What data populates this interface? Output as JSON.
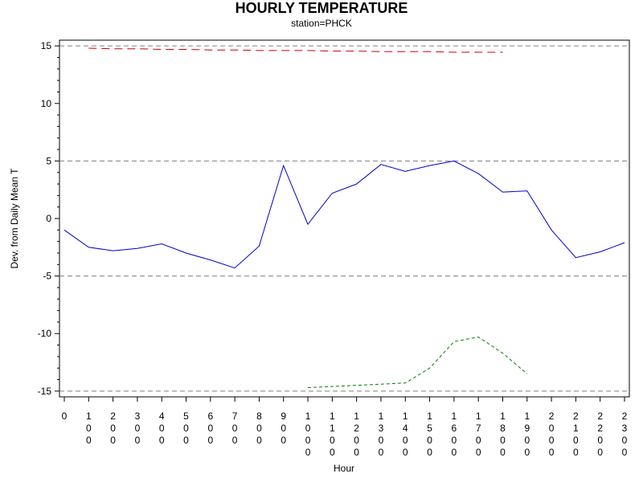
{
  "chart_data": {
    "type": "line",
    "title": "HOURLY TEMPERATURE",
    "subtitle": "station=PHCK",
    "xlabel": "Hour",
    "ylabel": "Dev. from Daily Mean T",
    "xlim": [
      0,
      23
    ],
    "ylim": [
      -15.5,
      15.5
    ],
    "y_ticks": [
      15,
      10,
      5,
      0,
      -5,
      -10,
      -15
    ],
    "y_tick_labels": [
      "15",
      "10",
      "5",
      "0",
      "-5",
      "-10",
      "-15"
    ],
    "x_ticks": [
      0,
      1,
      2,
      3,
      4,
      5,
      6,
      7,
      8,
      9,
      10,
      11,
      12,
      13,
      14,
      15,
      16,
      17,
      18,
      19,
      20,
      21,
      22,
      23
    ],
    "x_tick_labels": [
      "0",
      "100",
      "200",
      "300",
      "400",
      "500",
      "600",
      "700",
      "800",
      "900",
      "1000",
      "1100",
      "1200",
      "1300",
      "1400",
      "1500",
      "1600",
      "1700",
      "1800",
      "1900",
      "2000",
      "2100",
      "2200",
      "2300"
    ],
    "reference_lines": [
      15,
      5,
      -5,
      -15
    ],
    "grid": false,
    "series": [
      {
        "color": "#0000cc",
        "style": "solid",
        "x": [
          0,
          1,
          2,
          3,
          4,
          5,
          6,
          7,
          8,
          9,
          10,
          11,
          12,
          13,
          14,
          15,
          16,
          17,
          18,
          19,
          20,
          21,
          22,
          23
        ],
        "y": [
          -1.0,
          -2.5,
          -2.8,
          -2.6,
          -2.2,
          -3.0,
          -3.6,
          -4.3,
          -2.4,
          4.6,
          -0.5,
          2.2,
          3.0,
          4.7,
          4.1,
          4.6,
          5.0,
          3.9,
          2.3,
          2.4,
          -1.0,
          -3.4,
          -2.9,
          -2.1
        ]
      },
      {
        "color": "#cc0000",
        "style": "dashed",
        "x": [
          1,
          2,
          3,
          4,
          5,
          6,
          7,
          8,
          9,
          10,
          11,
          12,
          13,
          14,
          15,
          16,
          17,
          18
        ],
        "y": [
          14.8,
          14.75,
          14.75,
          14.7,
          14.7,
          14.65,
          14.65,
          14.6,
          14.6,
          14.6,
          14.55,
          14.55,
          14.5,
          14.5,
          14.5,
          14.45,
          14.45,
          14.45
        ]
      },
      {
        "color": "#008000",
        "style": "dashed",
        "x": [
          10,
          11,
          12,
          13,
          14,
          15,
          16,
          17,
          18,
          19
        ],
        "y": [
          -14.7,
          -14.6,
          -14.5,
          -14.4,
          -14.3,
          -13.0,
          -10.7,
          -10.3,
          -11.7,
          -13.5
        ]
      }
    ]
  }
}
